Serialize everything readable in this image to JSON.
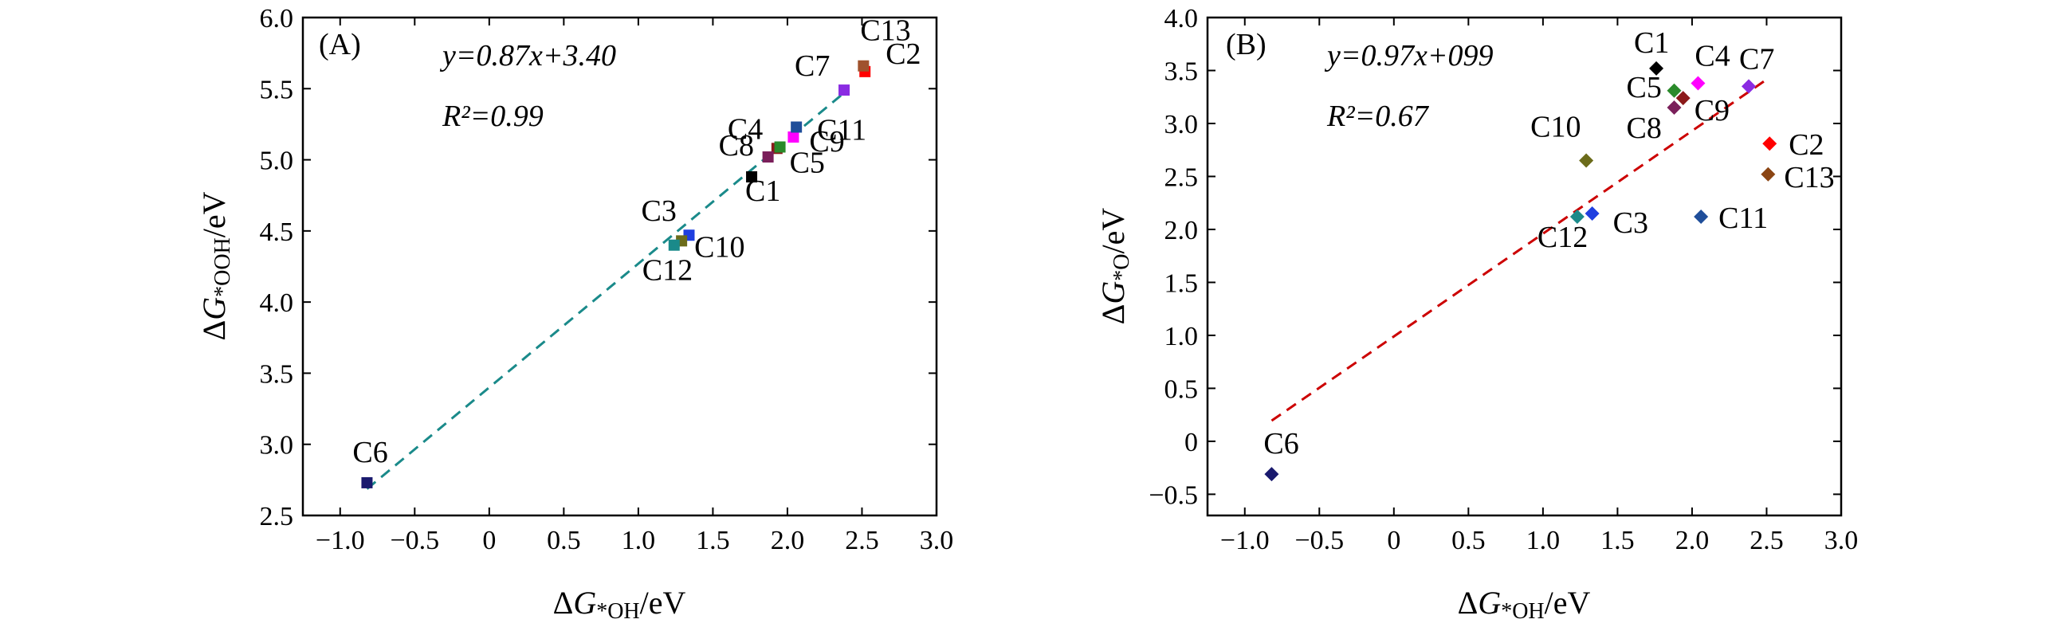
{
  "figure": {
    "panels": [
      {
        "id": "A",
        "tag": "(A)",
        "equation": "y=0.87x+3.40",
        "r2": "R²=0.99",
        "xlabel": "ΔG*OH/eV",
        "ylabel": "ΔG*OOH/eV",
        "xticks": [
          "−1.0",
          "−0.5",
          "0",
          "0.5",
          "1.0",
          "1.5",
          "2.0",
          "2.5",
          "3.0"
        ],
        "yticks": [
          "2.5",
          "3.0",
          "3.5",
          "4.0",
          "4.5",
          "5.0",
          "5.5",
          "6.0"
        ]
      },
      {
        "id": "B",
        "tag": "(B)",
        "equation": "y=0.97x+099",
        "r2": "R²=0.67",
        "xlabel": "ΔG*OH/eV",
        "ylabel": "ΔG*O/eV",
        "xticks": [
          "−1.0",
          "−0.5",
          "0",
          "0.5",
          "1.0",
          "1.5",
          "2.0",
          "2.5",
          "3.0"
        ],
        "yticks": [
          "−0.5",
          "0",
          "0.5",
          "1.0",
          "1.5",
          "2.0",
          "2.5",
          "3.0",
          "3.5",
          "4.0"
        ]
      }
    ]
  },
  "chart_data": [
    {
      "type": "scatter",
      "panel": "(A)",
      "xlabel": "ΔG*OH/eV",
      "ylabel": "ΔG*OOH/eV",
      "xlim": [
        -1.25,
        3.0
      ],
      "ylim": [
        2.5,
        6.0
      ],
      "marker": "square",
      "fit": {
        "slope": 0.87,
        "intercept": 3.4,
        "x_range": [
          -0.82,
          2.38
        ],
        "color": "#1a8a8a",
        "style": "dashed"
      },
      "annotations": [
        "y=0.87x+3.40",
        "R²=0.99"
      ],
      "points": [
        {
          "label": "C1",
          "x": 1.76,
          "y": 4.88,
          "color": "#000000"
        },
        {
          "label": "C2",
          "x": 2.52,
          "y": 5.62,
          "color": "#ff0000"
        },
        {
          "label": "C3",
          "x": 1.34,
          "y": 4.47,
          "color": "#1f3fe0"
        },
        {
          "label": "C4",
          "x": 1.93,
          "y": 5.08,
          "color": "#8b1a1a"
        },
        {
          "label": "C5",
          "x": 1.95,
          "y": 5.09,
          "color": "#2a8a2a"
        },
        {
          "label": "C6",
          "x": -0.82,
          "y": 2.73,
          "color": "#1a1a6e"
        },
        {
          "label": "C7",
          "x": 2.38,
          "y": 5.49,
          "color": "#8a2be2"
        },
        {
          "label": "C8",
          "x": 1.87,
          "y": 5.02,
          "color": "#7a1f5a"
        },
        {
          "label": "C9",
          "x": 2.04,
          "y": 5.16,
          "color": "#ff00ff"
        },
        {
          "label": "C10",
          "x": 1.29,
          "y": 4.43,
          "color": "#6b6b1a"
        },
        {
          "label": "C11",
          "x": 2.06,
          "y": 5.23,
          "color": "#1f4e9a"
        },
        {
          "label": "C12",
          "x": 1.24,
          "y": 4.4,
          "color": "#1a8a8a"
        },
        {
          "label": "C13",
          "x": 2.51,
          "y": 5.66,
          "color": "#a0522d"
        }
      ]
    },
    {
      "type": "scatter",
      "panel": "(B)",
      "xlabel": "ΔG*OH/eV",
      "ylabel": "ΔG*O/eV",
      "xlim": [
        -1.25,
        3.0
      ],
      "ylim": [
        -0.7,
        4.0
      ],
      "marker": "diamond",
      "fit": {
        "slope": 0.97,
        "intercept": 0.99,
        "x_range": [
          -0.82,
          2.5
        ],
        "color": "#cc0000",
        "style": "dashed"
      },
      "annotations": [
        "y=0.97x+099",
        "R²=0.67"
      ],
      "points": [
        {
          "label": "C1",
          "x": 1.76,
          "y": 3.52,
          "color": "#000000"
        },
        {
          "label": "C2",
          "x": 2.52,
          "y": 2.81,
          "color": "#ff0000"
        },
        {
          "label": "C3",
          "x": 1.33,
          "y": 2.15,
          "color": "#1f3fe0"
        },
        {
          "label": "C4",
          "x": 2.04,
          "y": 3.38,
          "color": "#ff00ff"
        },
        {
          "label": "C5",
          "x": 1.88,
          "y": 3.31,
          "color": "#2a8a2a"
        },
        {
          "label": "C6",
          "x": -0.82,
          "y": -0.31,
          "color": "#1a1a6e"
        },
        {
          "label": "C7",
          "x": 2.38,
          "y": 3.35,
          "color": "#8a2be2"
        },
        {
          "label": "C8",
          "x": 1.88,
          "y": 3.15,
          "color": "#7a1f5a"
        },
        {
          "label": "C9",
          "x": 1.94,
          "y": 3.24,
          "color": "#8b1a1a"
        },
        {
          "label": "C10",
          "x": 1.29,
          "y": 2.65,
          "color": "#6b6b1a"
        },
        {
          "label": "C11",
          "x": 2.06,
          "y": 2.12,
          "color": "#1f4e9a"
        },
        {
          "label": "C12",
          "x": 1.23,
          "y": 2.12,
          "color": "#1a8a8a"
        },
        {
          "label": "C13",
          "x": 2.51,
          "y": 2.52,
          "color": "#8b4513"
        }
      ]
    }
  ]
}
